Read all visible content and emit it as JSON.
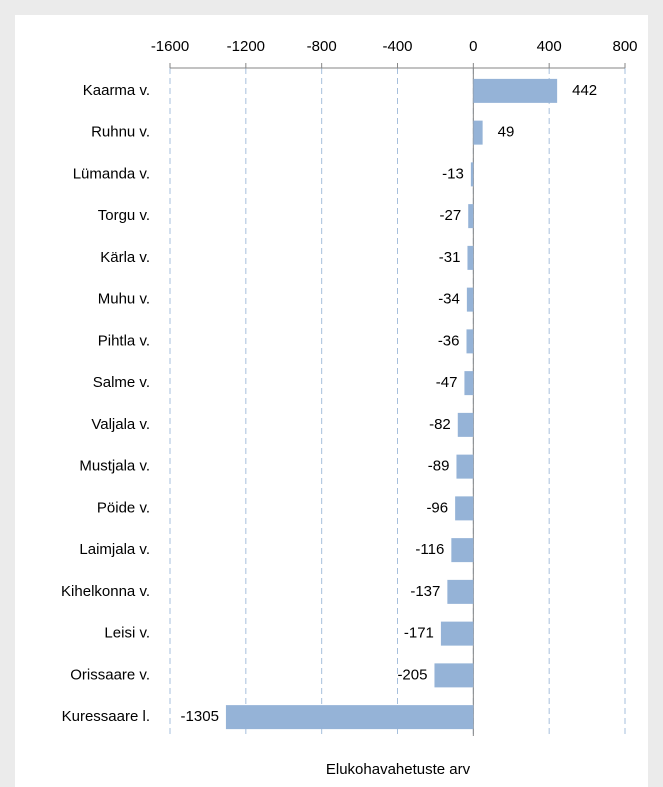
{
  "chart_data": {
    "type": "bar",
    "orientation": "horizontal",
    "categories": [
      "Kaarma v.",
      "Ruhnu v.",
      "Lümanda v.",
      "Torgu v.",
      "Kärla v.",
      "Muhu v.",
      "Pihtla v.",
      "Salme v.",
      "Valjala v.",
      "Mustjala v.",
      "Pöide v.",
      "Laimjala v.",
      "Kihelkonna v.",
      "Leisi v.",
      "Orissaare v.",
      "Kuressaare l."
    ],
    "values": [
      442,
      49,
      -13,
      -27,
      -31,
      -34,
      -36,
      -47,
      -82,
      -89,
      -96,
      -116,
      -137,
      -171,
      -205,
      -1305
    ],
    "color": "#95b3d7",
    "xlim": [
      -1600,
      800
    ],
    "xticks": [
      -1600,
      -1200,
      -800,
      -400,
      0,
      400,
      800
    ],
    "x_axis_label": "Elukohavahetuste arv",
    "grid": true
  }
}
